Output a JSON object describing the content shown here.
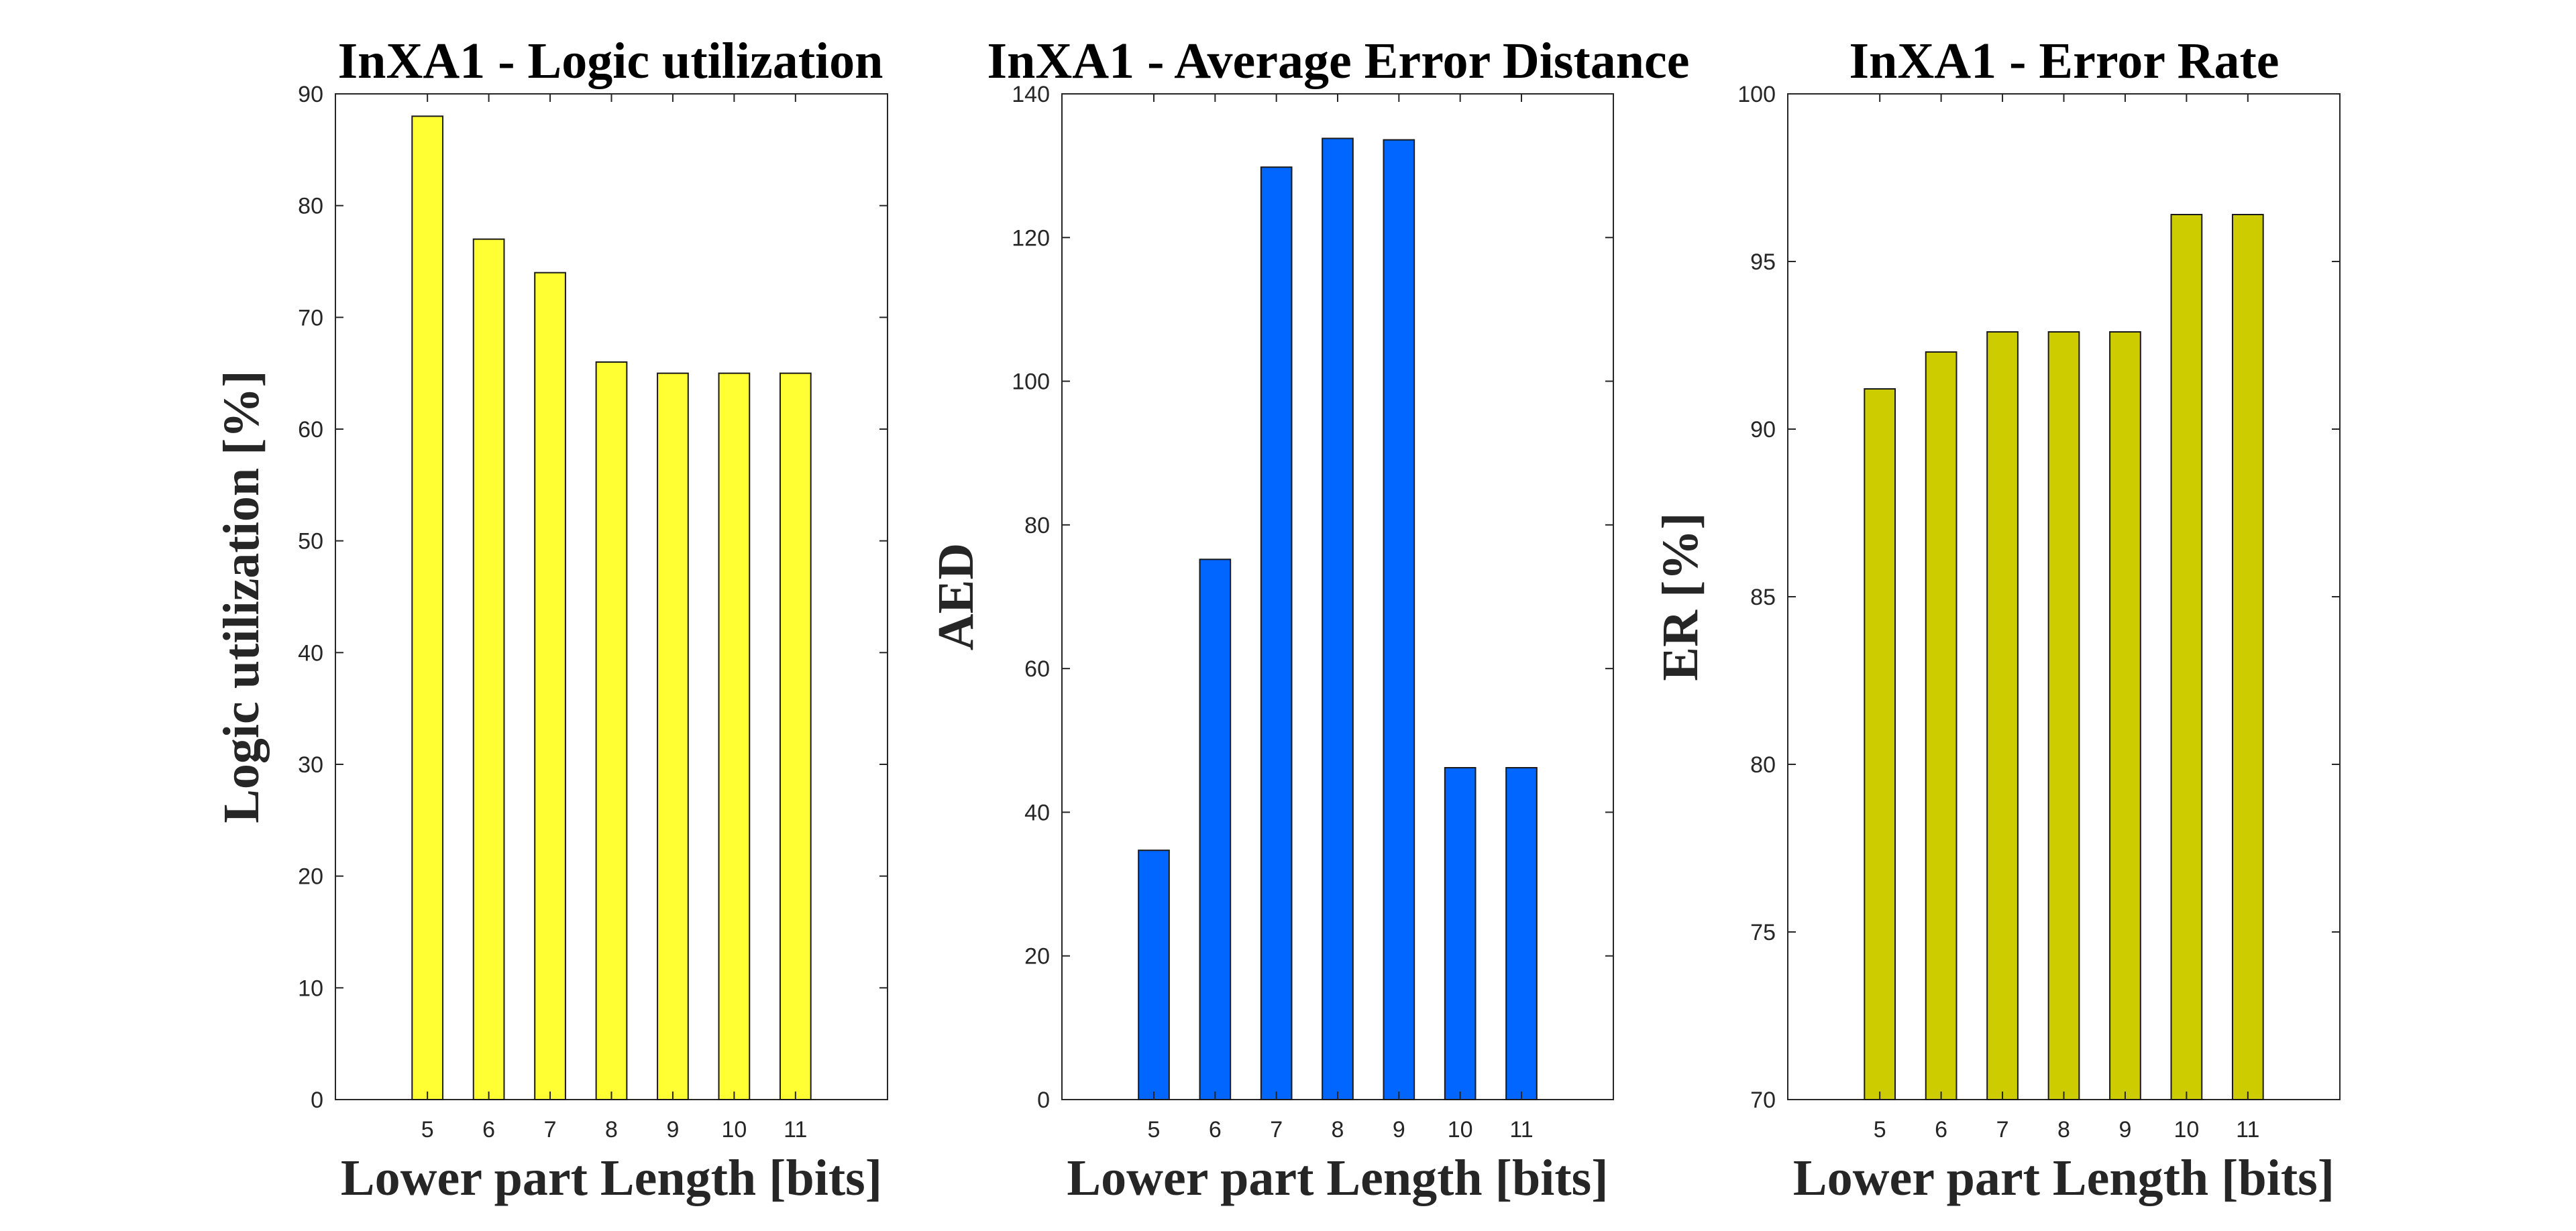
{
  "chart_data": [
    {
      "type": "bar",
      "title": "InXA1 - Logic utilization",
      "xlabel": "Lower part Length [bits]",
      "ylabel": "Logic utilization [%]",
      "categories": [
        "5",
        "6",
        "7",
        "8",
        "9",
        "10",
        "11"
      ],
      "values": [
        88,
        77,
        74,
        66,
        65,
        65,
        65
      ],
      "ylim": [
        0,
        90
      ],
      "yticks": [
        "0",
        "10",
        "20",
        "30",
        "40",
        "50",
        "60",
        "70",
        "80",
        "90"
      ],
      "bar_color": "#FFFF33",
      "grid": false,
      "legend": "none"
    },
    {
      "type": "bar",
      "title": "InXA1 - Average Error Distance",
      "xlabel": "Lower part Length [bits]",
      "ylabel": "AED",
      "categories": [
        "5",
        "6",
        "7",
        "8",
        "9",
        "10",
        "11"
      ],
      "values": [
        34.7,
        75.2,
        129.8,
        133.8,
        133.6,
        46.2,
        46.2
      ],
      "ylim": [
        0,
        140
      ],
      "yticks": [
        "0",
        "20",
        "40",
        "60",
        "80",
        "100",
        "120",
        "140"
      ],
      "bar_color": "#0066FF",
      "grid": false,
      "legend": "none"
    },
    {
      "type": "bar",
      "title": "InXA1 - Error Rate",
      "xlabel": "Lower part Length [bits]",
      "ylabel": "ER [%]",
      "categories": [
        "5",
        "6",
        "7",
        "8",
        "9",
        "10",
        "11"
      ],
      "values": [
        91.2,
        92.3,
        92.9,
        92.9,
        92.9,
        96.4,
        96.4
      ],
      "ylim": [
        70,
        100
      ],
      "yticks": [
        "70",
        "75",
        "80",
        "85",
        "90",
        "95",
        "100"
      ],
      "bar_color": "#CCCC00",
      "grid": false,
      "legend": "none"
    }
  ]
}
